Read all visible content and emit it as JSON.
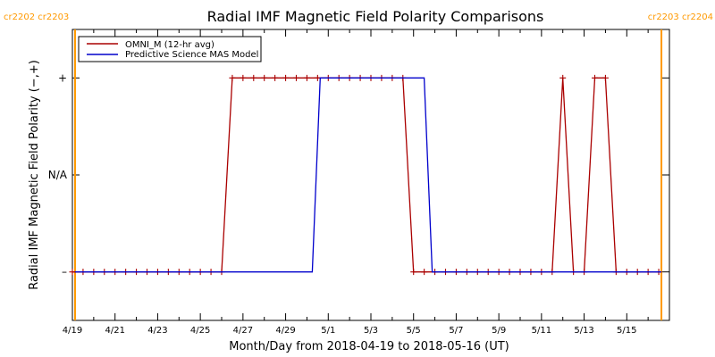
{
  "chart_data": {
    "type": "line",
    "title": "Radial IMF Magnetic Field Polarity Comparisons",
    "xlabel": "Month/Day from 2018-04-19 to 2018-05-16 (UT)",
    "ylabel": "Radial IMF Magnetic Field Polarity (−,+)",
    "x_unit": "UT date",
    "xlim": [
      "2018-04-19T00:00",
      "2018-05-17T00:00"
    ],
    "ylim": [
      -1.5,
      1.5
    ],
    "y_ticks": [
      {
        "value": -1,
        "label": "–"
      },
      {
        "value": 0,
        "label": "N/A"
      },
      {
        "value": 1,
        "label": "+"
      }
    ],
    "x_ticks": [
      {
        "x": "2018-04-19T00:00",
        "label": "4/19"
      },
      {
        "x": "2018-04-21T00:00",
        "label": "4/21"
      },
      {
        "x": "2018-04-23T00:00",
        "label": "4/23"
      },
      {
        "x": "2018-04-25T00:00",
        "label": "4/25"
      },
      {
        "x": "2018-04-27T00:00",
        "label": "4/27"
      },
      {
        "x": "2018-04-29T00:00",
        "label": "4/29"
      },
      {
        "x": "2018-05-01T00:00",
        "label": "5/1"
      },
      {
        "x": "2018-05-03T00:00",
        "label": "5/3"
      },
      {
        "x": "2018-05-05T00:00",
        "label": "5/5"
      },
      {
        "x": "2018-05-07T00:00",
        "label": "5/7"
      },
      {
        "x": "2018-05-09T00:00",
        "label": "5/9"
      },
      {
        "x": "2018-05-11T00:00",
        "label": "5/11"
      },
      {
        "x": "2018-05-13T00:00",
        "label": "5/13"
      },
      {
        "x": "2018-05-15T00:00",
        "label": "5/15"
      }
    ],
    "carrington_markers": [
      {
        "x": "2018-04-19T03:00",
        "label": "cr2202 cr2203",
        "color": "#ff9900",
        "label_side": "left"
      },
      {
        "x": "2018-05-16T15:00",
        "label": "cr2203 cr2204",
        "color": "#ff9900",
        "label_side": "right"
      }
    ],
    "legend": {
      "placement": "top-left"
    },
    "grid": false,
    "series": [
      {
        "name": "OMNI_M (12-hr avg)",
        "color": "#aa0000",
        "markers": "plus",
        "points": [
          {
            "x": "2018-04-19T00:00",
            "y": -1
          },
          {
            "x": "2018-04-19T12:00",
            "y": -1
          },
          {
            "x": "2018-04-20T00:00",
            "y": -1
          },
          {
            "x": "2018-04-20T12:00",
            "y": -1
          },
          {
            "x": "2018-04-21T00:00",
            "y": -1
          },
          {
            "x": "2018-04-21T12:00",
            "y": -1
          },
          {
            "x": "2018-04-22T00:00",
            "y": -1
          },
          {
            "x": "2018-04-22T12:00",
            "y": -1
          },
          {
            "x": "2018-04-23T00:00",
            "y": -1
          },
          {
            "x": "2018-04-23T12:00",
            "y": -1
          },
          {
            "x": "2018-04-24T00:00",
            "y": -1
          },
          {
            "x": "2018-04-24T12:00",
            "y": -1
          },
          {
            "x": "2018-04-25T00:00",
            "y": -1
          },
          {
            "x": "2018-04-25T12:00",
            "y": -1
          },
          {
            "x": "2018-04-26T00:00",
            "y": -1
          },
          {
            "x": "2018-04-26T12:00",
            "y": 1
          },
          {
            "x": "2018-04-27T00:00",
            "y": 1
          },
          {
            "x": "2018-04-27T12:00",
            "y": 1
          },
          {
            "x": "2018-04-28T00:00",
            "y": 1
          },
          {
            "x": "2018-04-28T12:00",
            "y": 1
          },
          {
            "x": "2018-04-29T00:00",
            "y": 1
          },
          {
            "x": "2018-04-29T12:00",
            "y": 1
          },
          {
            "x": "2018-04-30T00:00",
            "y": 1
          },
          {
            "x": "2018-04-30T12:00",
            "y": 1
          },
          {
            "x": "2018-05-01T00:00",
            "y": 1
          },
          {
            "x": "2018-05-01T12:00",
            "y": 1
          },
          {
            "x": "2018-05-02T00:00",
            "y": 1
          },
          {
            "x": "2018-05-02T12:00",
            "y": 1
          },
          {
            "x": "2018-05-03T00:00",
            "y": 1
          },
          {
            "x": "2018-05-03T12:00",
            "y": 1
          },
          {
            "x": "2018-05-04T00:00",
            "y": 1
          },
          {
            "x": "2018-05-04T12:00",
            "y": 1
          },
          {
            "x": "2018-05-05T00:00",
            "y": -1
          },
          {
            "x": "2018-05-05T12:00",
            "y": -1
          },
          {
            "x": "2018-05-06T00:00",
            "y": -1
          },
          {
            "x": "2018-05-06T12:00",
            "y": -1
          },
          {
            "x": "2018-05-07T00:00",
            "y": -1
          },
          {
            "x": "2018-05-07T12:00",
            "y": -1
          },
          {
            "x": "2018-05-08T00:00",
            "y": -1
          },
          {
            "x": "2018-05-08T12:00",
            "y": -1
          },
          {
            "x": "2018-05-09T00:00",
            "y": -1
          },
          {
            "x": "2018-05-09T12:00",
            "y": -1
          },
          {
            "x": "2018-05-10T00:00",
            "y": -1
          },
          {
            "x": "2018-05-10T12:00",
            "y": -1
          },
          {
            "x": "2018-05-11T00:00",
            "y": -1
          },
          {
            "x": "2018-05-11T12:00",
            "y": -1
          },
          {
            "x": "2018-05-12T00:00",
            "y": 1
          },
          {
            "x": "2018-05-12T12:00",
            "y": -1
          },
          {
            "x": "2018-05-13T00:00",
            "y": -1
          },
          {
            "x": "2018-05-13T12:00",
            "y": 1
          },
          {
            "x": "2018-05-14T00:00",
            "y": 1
          },
          {
            "x": "2018-05-14T12:00",
            "y": -1
          },
          {
            "x": "2018-05-15T00:00",
            "y": -1
          },
          {
            "x": "2018-05-15T12:00",
            "y": -1
          },
          {
            "x": "2018-05-16T00:00",
            "y": -1
          },
          {
            "x": "2018-05-16T12:00",
            "y": -1
          }
        ]
      },
      {
        "name": "Predictive Science MAS Model",
        "color": "#0000cc",
        "markers": "none",
        "points": [
          {
            "x": "2018-04-19T03:00",
            "y": -1
          },
          {
            "x": "2018-04-30T06:00",
            "y": -1
          },
          {
            "x": "2018-04-30T15:00",
            "y": 1
          },
          {
            "x": "2018-05-05T12:00",
            "y": 1
          },
          {
            "x": "2018-05-05T21:00",
            "y": -1
          },
          {
            "x": "2018-05-16T15:00",
            "y": -1
          }
        ]
      }
    ]
  }
}
